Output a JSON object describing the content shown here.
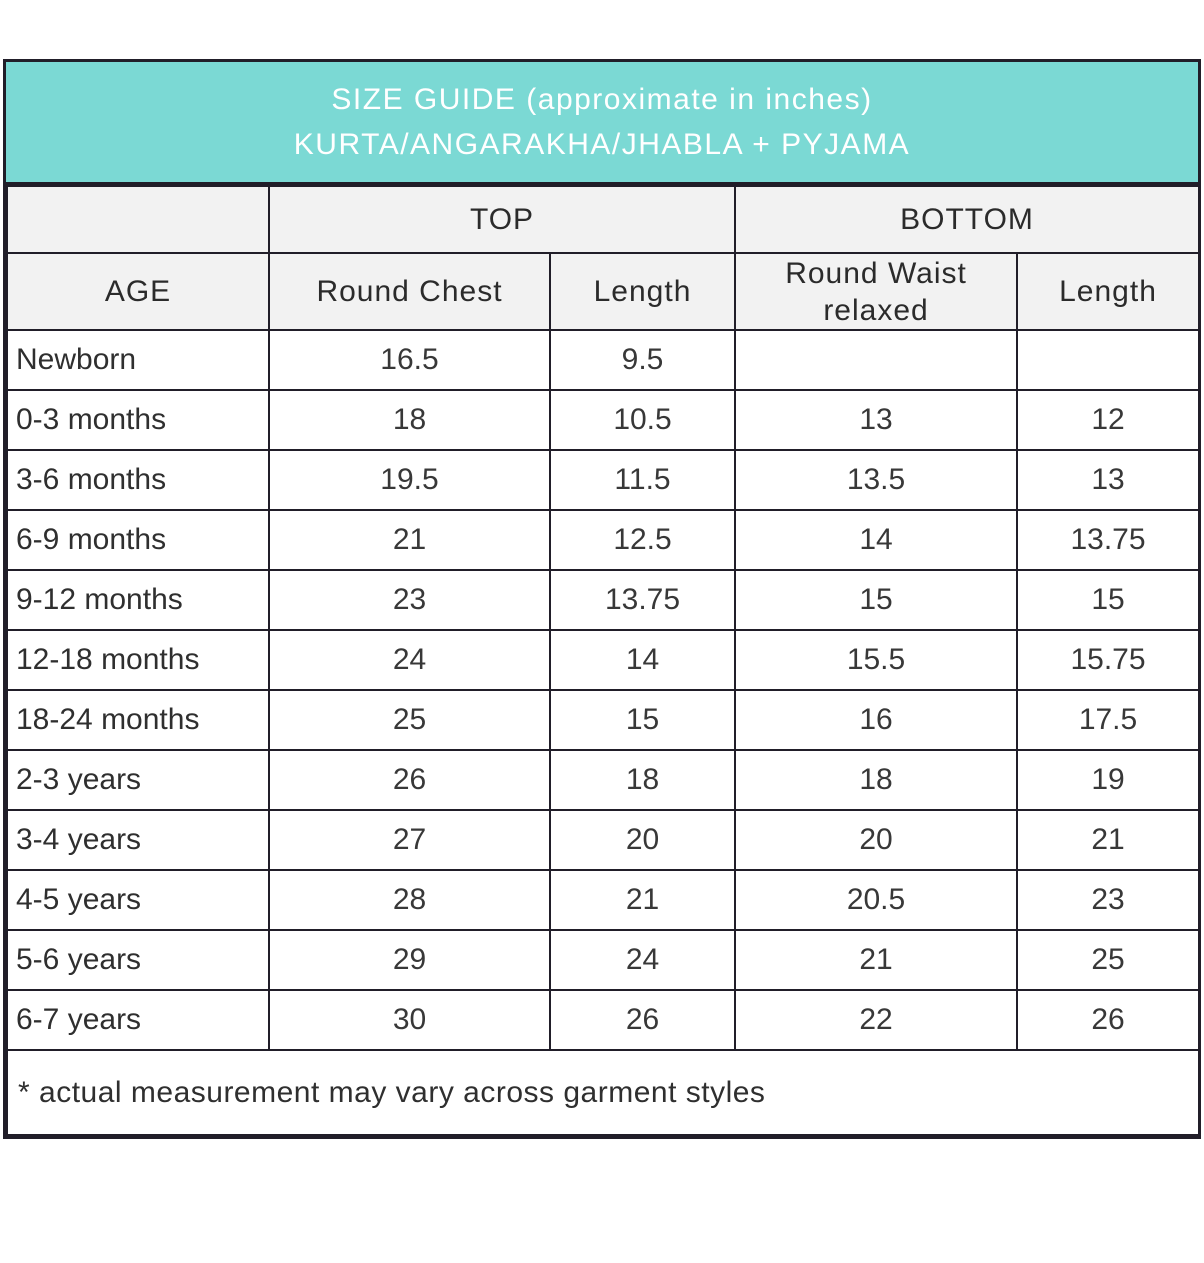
{
  "title": {
    "line1": "SIZE GUIDE (approximate in inches)",
    "line2": "KURTA/ANGARAKHA/JHABLA + PYJAMA"
  },
  "table": {
    "group_headers": [
      {
        "label": ""
      },
      {
        "label": "TOP"
      },
      {
        "label": "BOTTOM"
      }
    ],
    "column_headers": [
      "AGE",
      "Round Chest",
      "Length",
      "Round Waist relaxed",
      "Length"
    ],
    "rows": [
      [
        "Newborn",
        "16.5",
        "9.5",
        "",
        ""
      ],
      [
        "0-3 months",
        "18",
        "10.5",
        "13",
        "12"
      ],
      [
        "3-6 months",
        "19.5",
        "11.5",
        "13.5",
        "13"
      ],
      [
        "6-9 months",
        "21",
        "12.5",
        "14",
        "13.75"
      ],
      [
        "9-12 months",
        "23",
        "13.75",
        "15",
        "15"
      ],
      [
        "12-18 months",
        "24",
        "14",
        "15.5",
        "15.75"
      ],
      [
        "18-24 months",
        "25",
        "15",
        "16",
        "17.5"
      ],
      [
        "2-3 years",
        "26",
        "18",
        "18",
        "19"
      ],
      [
        "3-4 years",
        "27",
        "20",
        "20",
        "21"
      ],
      [
        "4-5 years",
        "28",
        "21",
        "20.5",
        "23"
      ],
      [
        "5-6 years",
        "29",
        "24",
        "21",
        "25"
      ],
      [
        "6-7 years",
        "30",
        "26",
        "22",
        "26"
      ]
    ]
  },
  "footnote": "* actual measurement may vary across garment styles",
  "colors": {
    "header_bg": "#7BD9D4",
    "header_text": "#FFFFFF",
    "subheader_bg": "#F2F2F2",
    "border": "#211E29",
    "text": "#333333"
  }
}
